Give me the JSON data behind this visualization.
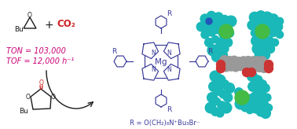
{
  "background_color": "#ffffff",
  "figsize": [
    3.78,
    1.64
  ],
  "dpi": 100,
  "ton_text": "TON = 103,000",
  "tof_text": "TOF = 12,000 h⁻¹",
  "co2_text": "CO₂",
  "plus_text": "+",
  "r_label": "R = O(CH₂)₈N⁺Bu₃Br⁻",
  "porphyrin_color": "#3a3a9a",
  "magenta_color": "#cc0077",
  "red_color": "#cc2222",
  "black_color": "#1a1a1a",
  "teal_color": "#1ab8b8",
  "green_atom": "#44bb44",
  "gray_atom": "#999999",
  "red_atom": "#cc3333",
  "blue_atom": "#2255bb"
}
